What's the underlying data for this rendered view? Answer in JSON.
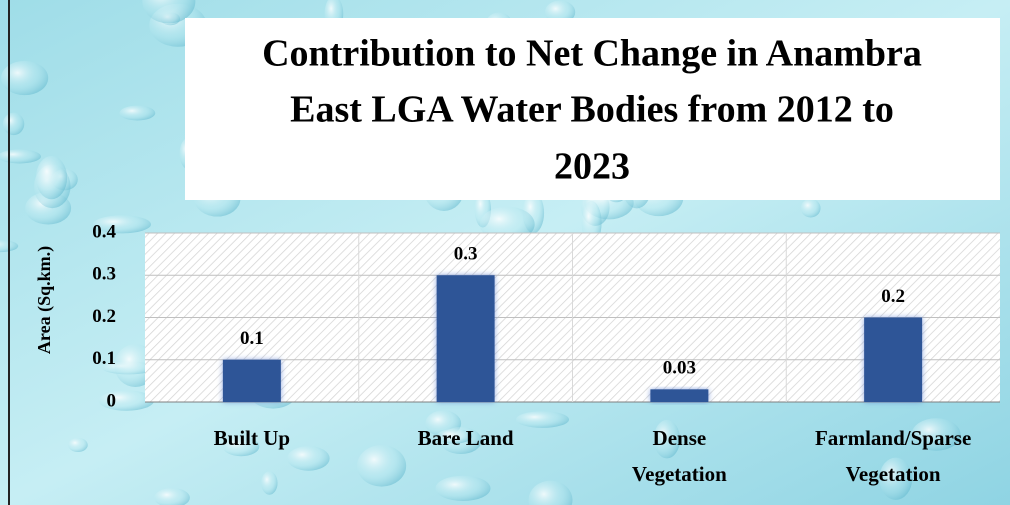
{
  "chart_data": {
    "type": "bar",
    "title": [
      "Contribution to Net Change in Anambra",
      "East LGA Water Bodies from 2012 to",
      "2023"
    ],
    "y_label": "Area (Sq.km.)",
    "categories": [
      "Built Up",
      "Bare Land",
      "Dense Vegetation",
      "Farmland/Sparse Vegetation"
    ],
    "values": [
      0.1,
      0.3,
      0.03,
      0.2
    ],
    "color": "#2f5597",
    "ylim": [
      0,
      0.4
    ],
    "yticks": [
      0,
      0.1,
      0.2,
      0.3,
      0.4
    ],
    "grid": true
  }
}
